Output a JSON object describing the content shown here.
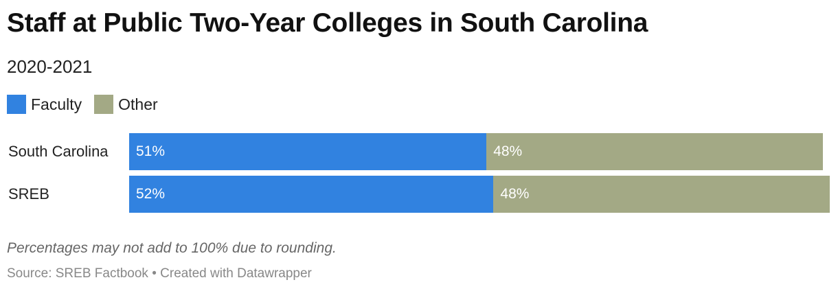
{
  "title": "Staff at Public Two-Year Colleges in South Carolina",
  "subtitle": "2020-2021",
  "note": "Percentages may not add to 100% due to rounding.",
  "footer": {
    "source": "Source: SREB Factbook",
    "separator": "•",
    "credit": "Created with Datawrapper"
  },
  "chart_data": {
    "type": "bar",
    "orientation": "horizontal",
    "stacked": true,
    "categories": [
      "South Carolina",
      "SREB"
    ],
    "series": [
      {
        "name": "Faculty",
        "values": [
          51,
          52
        ],
        "labels": [
          "51%",
          "52%"
        ],
        "color": "#3182e0"
      },
      {
        "name": "Other",
        "values": [
          48,
          48
        ],
        "labels": [
          "48%",
          "48%"
        ],
        "color": "#a3a985"
      }
    ],
    "xlim": [
      0,
      100
    ],
    "grid": false,
    "legend_position": "top-left"
  }
}
